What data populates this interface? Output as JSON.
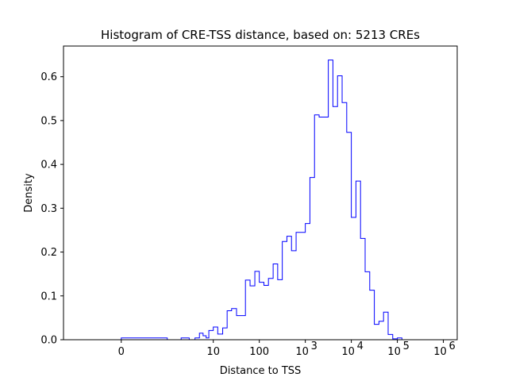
{
  "chart_data": {
    "type": "histogram-step",
    "title": "Histogram of CRE-TSS distance, based on: 5213 CREs",
    "xlabel": "Distance to TSS",
    "ylabel": "Density",
    "x_scale": "symlog",
    "xlim": [
      -1.8,
      2000000
    ],
    "ylim": [
      0,
      0.67
    ],
    "line_color": "#0000ff",
    "grid": false,
    "x_ticks": [
      {
        "value": 0,
        "label": "0"
      },
      {
        "value": 10,
        "label": "10"
      },
      {
        "value": 100,
        "label": "100"
      },
      {
        "value": 1000,
        "label": "10",
        "sup": "3"
      },
      {
        "value": 10000,
        "label": "10",
        "sup": "4"
      },
      {
        "value": 100000,
        "label": "10",
        "sup": "5"
      },
      {
        "value": 1000000,
        "label": "10",
        "sup": "6"
      }
    ],
    "y_ticks": [
      {
        "value": 0.0,
        "label": "0.0"
      },
      {
        "value": 0.1,
        "label": "0.1"
      },
      {
        "value": 0.2,
        "label": "0.2"
      },
      {
        "value": 0.3,
        "label": "0.3"
      },
      {
        "value": 0.4,
        "label": "0.4"
      },
      {
        "value": 0.5,
        "label": "0.5"
      },
      {
        "value": 0.6,
        "label": "0.6"
      }
    ],
    "bin_edges": [
      0,
      1,
      2,
      3,
      4,
      5,
      6,
      7,
      8,
      10,
      12.5,
      16,
      20,
      25,
      32,
      40,
      50,
      63,
      80,
      100,
      126,
      158,
      200,
      251,
      316,
      398,
      501,
      631,
      794,
      1000,
      1259,
      1585,
      1995,
      2512,
      3162,
      3981,
      5012,
      6310,
      7943,
      10000,
      12589,
      15849,
      19953,
      25119,
      31623,
      39811,
      50119,
      63096,
      79433,
      100000,
      125893,
      158489,
      199526,
      251189,
      316228,
      398107
    ],
    "densities": [
      0.004,
      0.0,
      0.004,
      0.0,
      0.004,
      0.015,
      0.009,
      0.004,
      0.021,
      0.029,
      0.013,
      0.027,
      0.066,
      0.071,
      0.055,
      0.055,
      0.136,
      0.123,
      0.156,
      0.131,
      0.124,
      0.14,
      0.173,
      0.137,
      0.224,
      0.236,
      0.203,
      0.245,
      0.245,
      0.265,
      0.37,
      0.513,
      0.508,
      0.508,
      0.638,
      0.532,
      0.602,
      0.541,
      0.473,
      0.279,
      0.362,
      0.231,
      0.155,
      0.113,
      0.035,
      0.042,
      0.063,
      0.012,
      0.002,
      0.004,
      0.0,
      0.0,
      0.0,
      0.0,
      0.0
    ]
  }
}
